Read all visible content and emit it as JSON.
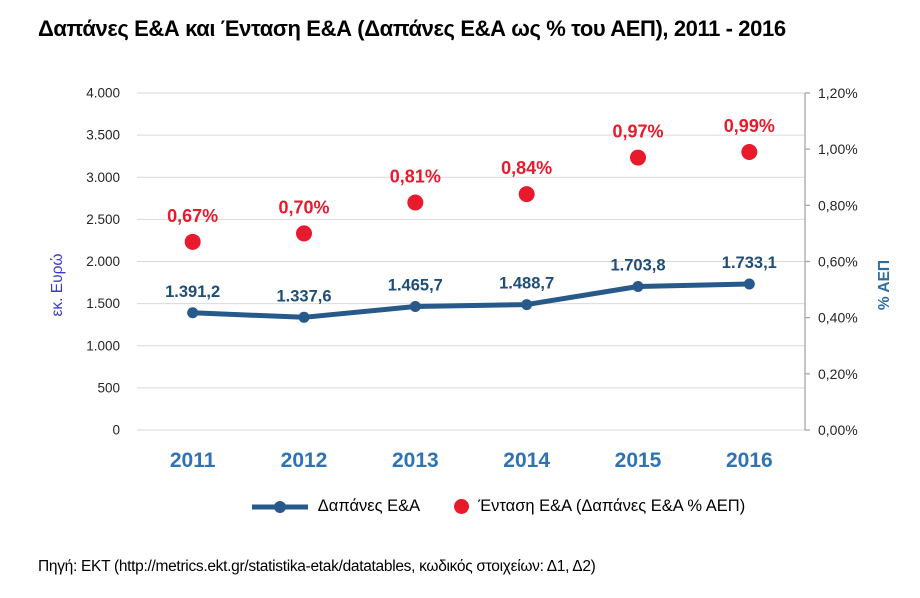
{
  "title": "Δαπάνες Ε&Α και Ένταση Ε&Α (Δαπάνες Ε&Α ως % του ΑΕΠ), 2011 - 2016",
  "footer": "Πηγή: ΕΚΤ (http://metrics.ekt.gr/statistika-etak/datatables, κωδικός στοιχείων: Δ1, Δ2)",
  "colors": {
    "line": "#27598B",
    "line_value_label": "#1F4E79",
    "scatter": "#E81A2C",
    "year_label": "#2E74B5",
    "grid": "#D9D9D9",
    "axis_line": "#A6A6A6",
    "tick_label": "#262626",
    "left_axis_title": "#3B3BC8",
    "right_axis_title": "#2E6E9E"
  },
  "chart_data": {
    "type": "line",
    "title": "Δαπάνες Ε&Α και Ένταση Ε&Α (Δαπάνες Ε&Α ως % του ΑΕΠ), 2011 - 2016",
    "categories": [
      "2011",
      "2012",
      "2013",
      "2014",
      "2015",
      "2016"
    ],
    "series": [
      {
        "name": "Δαπάνες Ε&Α",
        "type": "line",
        "axis": "left",
        "values": [
          1391.2,
          1337.6,
          1465.7,
          1488.7,
          1703.8,
          1733.1
        ],
        "labels": [
          "1.391,2",
          "1.337,6",
          "1.465,7",
          "1.488,7",
          "1.703,8",
          "1.733,1"
        ]
      },
      {
        "name": "Ένταση Ε&Α (Δαπάνες Ε&Α % ΑΕΠ)",
        "type": "scatter",
        "axis": "right",
        "values": [
          0.67,
          0.7,
          0.81,
          0.84,
          0.97,
          0.99
        ],
        "labels": [
          "0,67%",
          "0,70%",
          "0,81%",
          "0,84%",
          "0,97%",
          "0,99%"
        ]
      }
    ],
    "left_axis": {
      "title": "εκ. Ευρώ",
      "min": 0,
      "max": 4000,
      "step": 500,
      "tick_labels": [
        "4.000",
        "3.500",
        "3.000",
        "2.500",
        "2.000",
        "1.500",
        "1.000",
        "500",
        "0"
      ]
    },
    "right_axis": {
      "title": "% ΑΕΠ",
      "min": 0,
      "max": 1.2,
      "step": 0.2,
      "tick_labels": [
        "1,20%",
        "1,00%",
        "0,80%",
        "0,60%",
        "0,40%",
        "0,20%",
        "0,00%"
      ]
    },
    "grid": true,
    "legend_position": "bottom"
  }
}
